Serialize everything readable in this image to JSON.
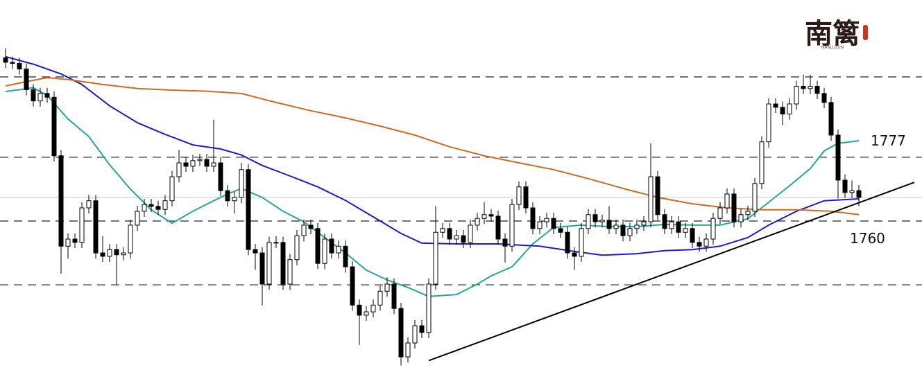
{
  "chart_data": {
    "type": "candlestick",
    "logo": {
      "text": "南篱",
      "subtext": "NANLULUN"
    },
    "xlim": [
      -0.8,
      132.1
    ],
    "ylim": [
      1720.3,
      1818.9
    ],
    "levels": [
      1798.4,
      {
        "value": 1777,
        "label": "1777"
      },
      {
        "value": 1760,
        "label": "1760"
      },
      1743
    ],
    "price_line": 1766.3,
    "up_color": "#ffffff",
    "down_color": "#000000",
    "open": [
      1803.5,
      1802.3,
      1802,
      1800.5,
      1795,
      1792,
      1794,
      1793,
      1777.4,
      1753.3,
      1755.2,
      1754.3,
      1763.5,
      1765.4,
      1751.5,
      1750.6,
      1752.4,
      1751,
      1751.5,
      1758.9,
      1762.6,
      1764.4,
      1763.9,
      1763.1,
      1765.4,
      1771.8,
      1775.5,
      1774.6,
      1776.1,
      1776.4,
      1774.6,
      1775.5,
      1768.1,
      1765.4,
      1766.3,
      1773.7,
      1752.4,
      1751.5,
      1743.2,
      1754.3,
      1754.3,
      1743.2,
      1749.7,
      1756.1,
      1758.9,
      1758,
      1748.7,
      1755.2,
      1751.5,
      1753.3,
      1747.8,
      1737.6,
      1734.9,
      1735.8,
      1737.6,
      1741.3,
      1743.2,
      1736.7,
      1723.8,
      1727.5,
      1732.1,
      1730.3,
      1743.2,
      1757,
      1758,
      1755.2,
      1756.1,
      1754.3,
      1758.9,
      1760.7,
      1761.7,
      1761.3,
      1755.2,
      1753.3,
      1764.4,
      1769.1,
      1763.5,
      1758,
      1759.8,
      1760.7,
      1758,
      1757,
      1751.5,
      1750.6,
      1758,
      1761.7,
      1759.8,
      1760.2,
      1758,
      1758.9,
      1756.1,
      1758,
      1758.9,
      1759.8,
      1771.8,
      1761.7,
      1758,
      1759.8,
      1757,
      1758,
      1754.3,
      1753.3,
      1755.2,
      1760.7,
      1763.5,
      1767.2,
      1759.8,
      1761.7,
      1762.6,
      1770,
      1781.1,
      1791.2,
      1790.3,
      1788.5,
      1791.2,
      1795.9,
      1795.3,
      1795.9,
      1794,
      1791.6,
      1782.9,
      1770.9,
      1767.6,
      1768.1
    ],
    "high": [
      1806,
      1803.8,
      1803.5,
      1802,
      1796.5,
      1795.5,
      1795.5,
      1794.5,
      1778.9,
      1756.7,
      1756.7,
      1765,
      1767,
      1766.9,
      1756,
      1753.9,
      1753.9,
      1753,
      1760.4,
      1764.1,
      1765.9,
      1765.9,
      1765.4,
      1766.9,
      1773.3,
      1779,
      1777,
      1777.6,
      1777.9,
      1777.9,
      1787,
      1777,
      1769.6,
      1767.8,
      1775.5,
      1775.2,
      1753.9,
      1753,
      1755.8,
      1756,
      1755.8,
      1751.2,
      1757.6,
      1760.4,
      1760.4,
      1759.5,
      1756.7,
      1756.7,
      1754.8,
      1754.8,
      1749.3,
      1739.1,
      1737.3,
      1739.1,
      1742.8,
      1745,
      1744.7,
      1738.2,
      1729,
      1733.6,
      1733.6,
      1744.7,
      1764,
      1759.5,
      1759.5,
      1757.6,
      1757.6,
      1760.4,
      1762.2,
      1765,
      1763.2,
      1762.8,
      1756.7,
      1765.9,
      1770.6,
      1770.6,
      1765,
      1761.3,
      1762.2,
      1762.2,
      1759.5,
      1758.5,
      1753,
      1759.5,
      1763.2,
      1763.2,
      1761.7,
      1764,
      1760.4,
      1760.4,
      1759.5,
      1760.4,
      1761.3,
      1780.7,
      1773.3,
      1763.2,
      1761.3,
      1761.3,
      1759.5,
      1759.5,
      1755.8,
      1756.7,
      1762.2,
      1765,
      1768.7,
      1768.7,
      1763.2,
      1764.1,
      1771.5,
      1782.6,
      1792.7,
      1792.7,
      1791.8,
      1792.7,
      1797.4,
      1799,
      1799,
      1797.4,
      1795.5,
      1793.1,
      1784.4,
      1772.4,
      1770.8,
      1769.6
    ],
    "low": [
      1800.8,
      1800.5,
      1799,
      1793.5,
      1790.5,
      1790.5,
      1791.5,
      1775.9,
      1746,
      1750,
      1752.8,
      1752.8,
      1762,
      1750,
      1749.1,
      1749.1,
      1743,
      1749.5,
      1750,
      1757.4,
      1761.1,
      1762.4,
      1761.6,
      1761.6,
      1763.9,
      1770.3,
      1773.1,
      1773.1,
      1774.6,
      1773.1,
      1773.1,
      1766.6,
      1763.9,
      1762,
      1764.8,
      1750.9,
      1747,
      1737.5,
      1741.7,
      1752.8,
      1741.7,
      1741.7,
      1748.2,
      1754.6,
      1756.5,
      1747.2,
      1747.2,
      1750,
      1750,
      1746.3,
      1736.1,
      1727,
      1733.4,
      1734.3,
      1736.1,
      1739.8,
      1735.2,
      1721.5,
      1722.3,
      1726,
      1728.8,
      1728.8,
      1741.7,
      1755.5,
      1753.7,
      1753.7,
      1752.8,
      1752.8,
      1757.4,
      1759.2,
      1759.8,
      1753.7,
      1749,
      1751.8,
      1762.9,
      1762,
      1756.5,
      1756.5,
      1758.3,
      1756.5,
      1755.5,
      1750,
      1747,
      1749.1,
      1756.5,
      1758.3,
      1758.3,
      1756.5,
      1756.5,
      1754.6,
      1754.6,
      1756.5,
      1757.4,
      1758.3,
      1760.2,
      1756.5,
      1756.5,
      1755.5,
      1755.5,
      1752.8,
      1751.8,
      1751.8,
      1753.7,
      1759.2,
      1762,
      1758.3,
      1758.3,
      1760.2,
      1761.1,
      1768.5,
      1779.6,
      1788.8,
      1785.5,
      1787,
      1789.7,
      1793.8,
      1793.8,
      1792.5,
      1790.1,
      1781.4,
      1766,
      1766.1,
      1766.1,
      1764
    ],
    "close": [
      1802.3,
      1802,
      1800.5,
      1795,
      1792,
      1794,
      1793,
      1777.4,
      1753.3,
      1755.2,
      1754.3,
      1763.5,
      1765.4,
      1751.5,
      1750.6,
      1752.4,
      1751,
      1751.5,
      1758.9,
      1762.6,
      1764.4,
      1763.9,
      1763.1,
      1765.4,
      1771.8,
      1775.5,
      1774.6,
      1776.1,
      1776.4,
      1774.6,
      1775.5,
      1768.1,
      1765.4,
      1766.3,
      1773.7,
      1752.4,
      1751.5,
      1743.2,
      1754.3,
      1754.3,
      1743.2,
      1749.7,
      1756.1,
      1758.9,
      1758,
      1748.7,
      1755.2,
      1751.5,
      1753.3,
      1747.8,
      1737.6,
      1734.9,
      1735.8,
      1737.6,
      1741.3,
      1743.2,
      1736.7,
      1723.8,
      1727.5,
      1732.1,
      1730.3,
      1743.2,
      1757,
      1758,
      1755.2,
      1756.1,
      1754.3,
      1758.9,
      1760.7,
      1761.7,
      1761.3,
      1755.2,
      1753.3,
      1764.4,
      1769.1,
      1763.5,
      1758,
      1759.8,
      1760.7,
      1758,
      1757,
      1751.5,
      1750.6,
      1758,
      1761.7,
      1759.8,
      1760.2,
      1758,
      1758.9,
      1756.1,
      1758,
      1758.9,
      1759.8,
      1771.8,
      1761.7,
      1758,
      1759.8,
      1757,
      1758,
      1754.3,
      1753.3,
      1755.2,
      1760.7,
      1763.5,
      1767.2,
      1759.8,
      1761.7,
      1762.6,
      1770,
      1781.1,
      1791.2,
      1790.3,
      1788.5,
      1791.2,
      1795.9,
      1795.3,
      1795.9,
      1794,
      1791.6,
      1782.9,
      1770.9,
      1767.6,
      1768.1,
      1766.3
    ],
    "lines": [
      {
        "color": "#26a69a",
        "x": [
          0,
          4,
          6,
          9,
          12,
          15,
          18,
          21,
          24,
          27,
          30,
          32,
          34,
          37,
          40,
          43,
          46,
          49,
          52,
          55,
          58,
          61,
          65,
          68,
          70,
          73,
          76,
          79,
          83,
          87,
          91,
          95,
          99,
          103,
          107,
          110,
          113,
          116,
          118,
          120,
          123
        ],
        "values": [
          1794.5,
          1795.5,
          1793.5,
          1787.2,
          1782.5,
          1775,
          1768.5,
          1763,
          1759.4,
          1762.6,
          1765.4,
          1767.2,
          1768.7,
          1766.3,
          1762.6,
          1759.8,
          1755.6,
          1751.5,
          1746.9,
          1744.3,
          1742.3,
          1739.9,
          1740.4,
          1743.2,
          1745.4,
          1747.8,
          1753.9,
          1758.3,
          1758.9,
          1758.5,
          1758.5,
          1759.1,
          1758.9,
          1758.9,
          1760.6,
          1765,
          1769.4,
          1774,
          1778.7,
          1780.7,
          1781.4
        ]
      },
      {
        "color": "#1a1ad6",
        "x": [
          0,
          4,
          8,
          11,
          15,
          19,
          23,
          27,
          31,
          34,
          37,
          41,
          45,
          49,
          53,
          57,
          60,
          65,
          71,
          77,
          82,
          86,
          91,
          95,
          99,
          103,
          107,
          110,
          114,
          118,
          123
        ],
        "values": [
          1803.8,
          1801.8,
          1799.2,
          1796.4,
          1790.7,
          1786.2,
          1783.1,
          1780.3,
          1779.2,
          1777.6,
          1774.8,
          1772,
          1769.1,
          1765.5,
          1761.1,
          1756.7,
          1754.1,
          1753.9,
          1753.9,
          1753.3,
          1751.9,
          1750.9,
          1751.3,
          1752.1,
          1752.4,
          1753.3,
          1755.6,
          1758.9,
          1762.6,
          1765.4,
          1765.9
        ]
      },
      {
        "color": "#d2691e",
        "x": [
          0,
          4,
          6,
          9,
          14,
          19,
          24,
          29,
          34,
          39,
          44,
          49,
          54,
          59,
          64,
          69,
          74,
          79,
          84,
          89,
          94,
          99,
          104,
          109,
          114,
          119,
          123
        ],
        "values": [
          1796,
          1797.5,
          1798.2,
          1797.7,
          1796.4,
          1795.3,
          1794.9,
          1794.6,
          1794,
          1791.6,
          1789.4,
          1787.5,
          1785.3,
          1782.9,
          1779.8,
          1777.4,
          1775.5,
          1773.7,
          1771.3,
          1768.7,
          1766.3,
          1764.6,
          1763.5,
          1763,
          1763,
          1762.6,
          1761.7
        ]
      }
    ],
    "trendline": {
      "color": "#000000",
      "x": [
        61,
        131
      ],
      "y": [
        1722.8,
        1770.3
      ]
    }
  }
}
